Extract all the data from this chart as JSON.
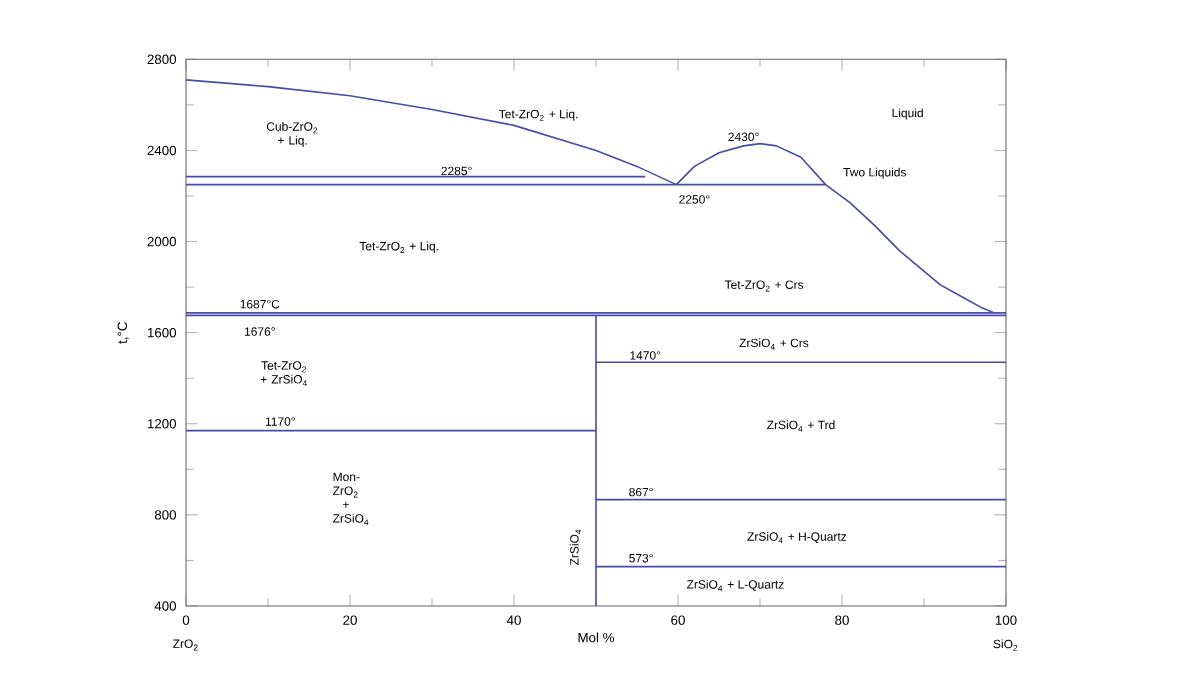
{
  "chart_data": {
    "type": "line",
    "xlabel": "Mol %",
    "ylabel": "t,°C",
    "xlim": [
      0,
      100
    ],
    "ylim": [
      400,
      2800
    ],
    "xticks": [
      0,
      20,
      40,
      60,
      80,
      100
    ],
    "yticks": [
      400,
      800,
      1200,
      1600,
      2000,
      2400,
      2800
    ],
    "grid": false,
    "marker": "none",
    "line_style": "solid",
    "series": [
      {
        "color": "#4a4aa8",
        "x": [
          0,
          10,
          20,
          30,
          40,
          50,
          55,
          59.8
        ],
        "values": [
          2710,
          2680,
          2640,
          2580,
          2510,
          2400,
          2330,
          2250
        ]
      },
      {
        "color": "#4a4aa8",
        "x": [
          0,
          56
        ],
        "values": [
          2285,
          2285
        ]
      },
      {
        "color": "#4a4aa8",
        "x": [
          0,
          78
        ],
        "values": [
          2250,
          2250
        ]
      },
      {
        "color": "#4a4aa8",
        "x": [
          59.8,
          62,
          65,
          68,
          70,
          72,
          75,
          78,
          81,
          84,
          87,
          89,
          92,
          95,
          97,
          98.5
        ],
        "values": [
          2250,
          2330,
          2390,
          2420,
          2430,
          2420,
          2370,
          2250,
          2170,
          2070,
          1960,
          1900,
          1810,
          1750,
          1710,
          1687
        ]
      },
      {
        "color": "#4a4aa8",
        "x": [
          0,
          100
        ],
        "values": [
          1687,
          1687
        ]
      },
      {
        "color": "#4a4aa8",
        "x": [
          0,
          100
        ],
        "values": [
          1676,
          1676
        ]
      },
      {
        "color": "#4a4aa8",
        "x": [
          50,
          100
        ],
        "values": [
          1470,
          1470
        ]
      },
      {
        "color": "#4a4aa8",
        "x": [
          0,
          50
        ],
        "values": [
          1170,
          1170
        ]
      },
      {
        "color": "#4a4aa8",
        "x": [
          50,
          100
        ],
        "values": [
          867,
          867
        ]
      },
      {
        "color": "#4a4aa8",
        "x": [
          50,
          100
        ],
        "values": [
          573,
          573
        ]
      },
      {
        "color": "#4a4aa8",
        "x": [
          50,
          50
        ],
        "values": [
          400,
          1676
        ]
      }
    ],
    "annotations": [
      "Cub-ZrO$_{2}$ + Liq.",
      "Tet-ZrO$_{2}$ + Liq.",
      "2285°",
      "Tet-ZrO$_{2}$ + Liq.",
      "1687°C",
      "1676°",
      "2430°",
      "2250°",
      "Two Liquids",
      "Liquid",
      "Tet-ZrO$_{2}$ + Crs",
      "ZrSiO$_{4}$ + Crs",
      "1470°",
      "ZrSiO$_{4}$ + Trd",
      "867°",
      "ZrSiO$_{4}$ + H-Quartz",
      "573°",
      "ZrSiO$_{4}$ + L-Quartz",
      "Tet-ZrO$_{2}$ + ZrSiO$_{4}$",
      "1170°",
      "Mon-ZrO$_{2}$ + ZrSiO$_{4}$",
      "ZrSiO$_{4}$",
      "ZrO$_{2}$",
      "SiO$_{2}$"
    ]
  }
}
